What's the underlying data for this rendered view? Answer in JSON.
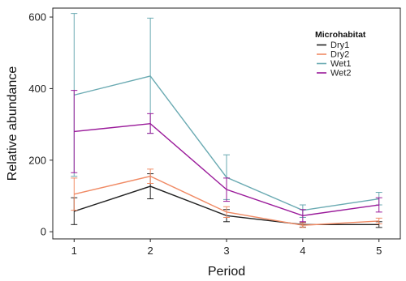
{
  "chart_data": {
    "type": "line",
    "xlabel": "Period",
    "ylabel": "Relative abundance",
    "x": [
      1,
      2,
      3,
      4,
      5
    ],
    "x_ticks": [
      "1",
      "2",
      "3",
      "4",
      "5"
    ],
    "xlim": [
      0.72,
      5.28
    ],
    "y_ticks": [
      "0",
      "200",
      "400",
      "600"
    ],
    "ylim": [
      -20,
      625
    ],
    "grid": false,
    "legend": {
      "title": "Microhabitat",
      "position": "top-right"
    },
    "series": [
      {
        "name": "Dry1",
        "color": "#222222",
        "values": [
          57,
          127,
          45,
          20,
          20
        ],
        "error_low": [
          20,
          92,
          28,
          13,
          12
        ],
        "error_high": [
          95,
          162,
          62,
          27,
          28
        ]
      },
      {
        "name": "Dry2",
        "color": "#f08a64",
        "values": [
          105,
          155,
          55,
          18,
          30
        ],
        "error_low": [
          60,
          135,
          40,
          12,
          22
        ],
        "error_high": [
          150,
          175,
          70,
          25,
          38
        ]
      },
      {
        "name": "Wet1",
        "color": "#6aaab2",
        "values": [
          382,
          435,
          152,
          60,
          92
        ],
        "error_low": [
          155,
          275,
          90,
          40,
          75
        ],
        "error_high": [
          610,
          597,
          215,
          75,
          110
        ]
      },
      {
        "name": "Wet2",
        "color": "#9a1a9a",
        "values": [
          280,
          302,
          118,
          45,
          75
        ],
        "error_low": [
          165,
          275,
          85,
          28,
          55
        ],
        "error_high": [
          395,
          330,
          150,
          62,
          95
        ]
      }
    ]
  }
}
